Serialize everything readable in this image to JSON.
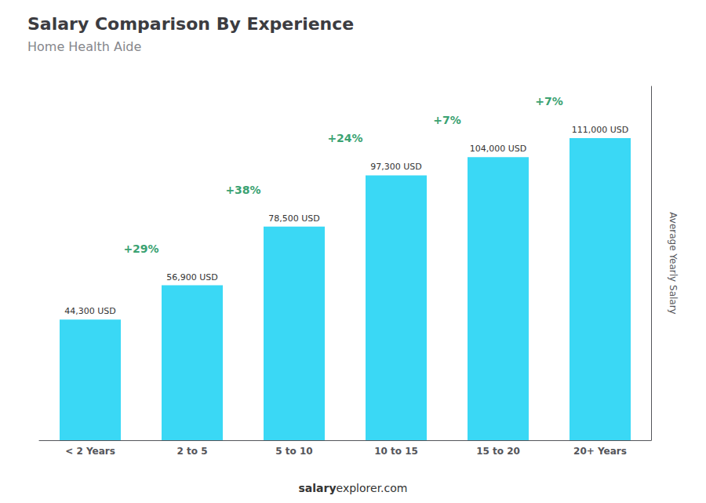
{
  "chart_data": {
    "type": "bar",
    "title": "Salary Comparison By Experience",
    "subtitle": "Home Health Aide",
    "ylabel": "Average Yearly Salary",
    "categories": [
      "< 2 Years",
      "2 to 5",
      "5 to 10",
      "10 to 15",
      "15 to 20",
      "20+ Years"
    ],
    "values": [
      44300,
      56900,
      78500,
      97300,
      104000,
      111000
    ],
    "value_labels": [
      "44,300 USD",
      "56,900 USD",
      "78,500 USD",
      "97,300 USD",
      "104,000 USD",
      "111,000 USD"
    ],
    "data_labels": true,
    "annotations": [
      "+29%",
      "+38%",
      "+24%",
      "+7%",
      "+7%"
    ],
    "footer": [
      "salary",
      "explorer.com"
    ],
    "color": "#3ad8f5",
    "ylim": [
      0,
      130000
    ],
    "tick_labels": "x",
    "grid": false
  }
}
